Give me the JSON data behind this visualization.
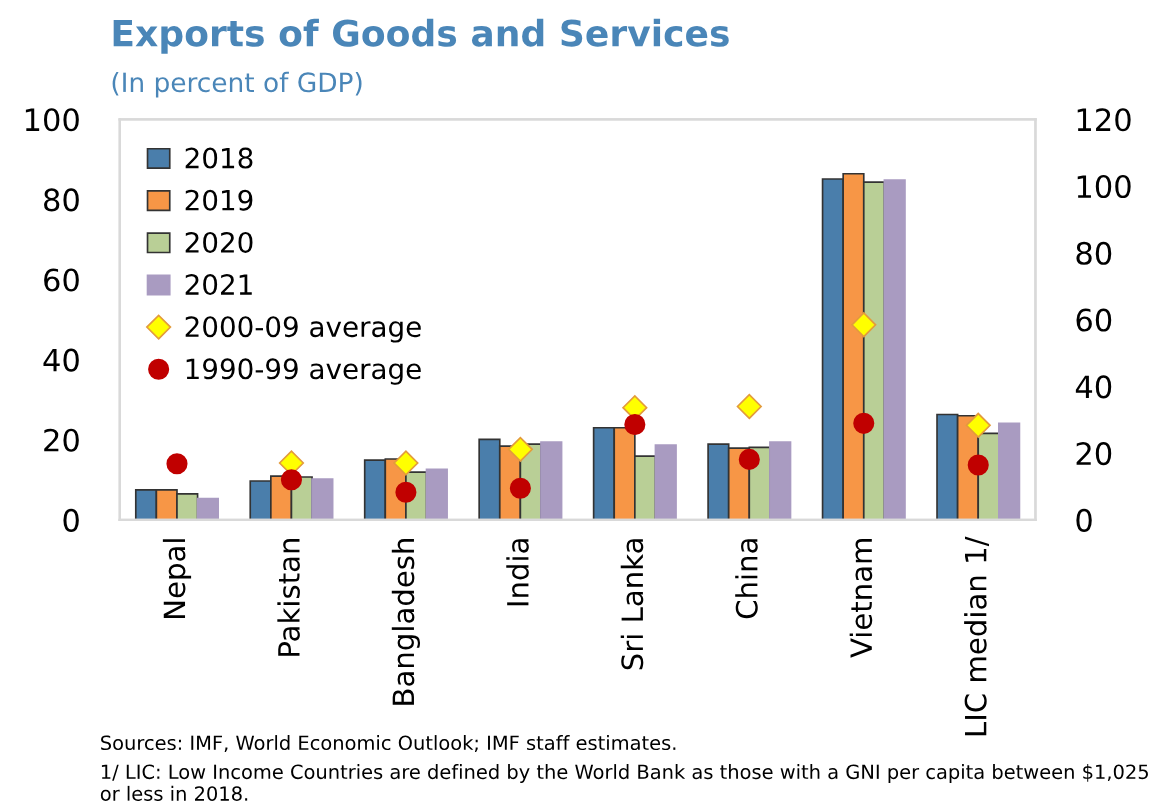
{
  "chart_data": {
    "type": "bar",
    "title": "Exports of Goods and Services",
    "subtitle": "(In percent of GDP)",
    "categories": [
      "Nepal",
      "Pakistan",
      "Bangladesh",
      "India",
      "Sri Lanka",
      "China",
      "Vietnam",
      "LIC median 1/"
    ],
    "series": [
      {
        "name": "2018",
        "color": "#4a7eab",
        "values": [
          7.5,
          9.7,
          14.9,
          20.1,
          23,
          18.9,
          85.1,
          26.3
        ]
      },
      {
        "name": "2019",
        "color": "#f79646",
        "values": [
          7.5,
          10.9,
          15.2,
          18.4,
          23,
          17.9,
          86.4,
          26
        ]
      },
      {
        "name": "2020",
        "color": "#b9cf96",
        "values": [
          6.5,
          10.7,
          11.9,
          18.9,
          15.9,
          18.1,
          84.3,
          21.6
        ]
      },
      {
        "name": "2021",
        "color": "#a99bc1",
        "values": [
          5.3,
          10.2,
          12.6,
          19.4,
          18.7,
          19.4,
          84.8,
          24.1
        ]
      },
      {
        "name": "2000-09 average",
        "type": "scatter",
        "marker": "diamond",
        "color": "#ffff00",
        "values": [
          null,
          14.2,
          14.2,
          17.6,
          28,
          28.3,
          48.7,
          23.6
        ]
      },
      {
        "name": "1990-99 average",
        "type": "scatter",
        "marker": "circle",
        "color": "#c00000",
        "values": [
          14,
          10,
          6.9,
          7.9,
          23.8,
          15.1,
          24.1,
          13.7
        ]
      }
    ],
    "ylim": [
      0,
      100
    ],
    "yticks": [
      0,
      20,
      40,
      60,
      80,
      100
    ],
    "y2lim": [
      0,
      120
    ],
    "y2ticks": [
      0,
      20,
      40,
      60,
      80,
      100,
      120
    ],
    "grid": false,
    "legend": "top left",
    "annotations": [
      "Sources: IMF, World Economic Outlook; IMF staff estimates.",
      "1/ LIC: Low Income Countries are defined by the World Bank as those with a GNI per capita between $1,025 or less in 2018."
    ]
  }
}
